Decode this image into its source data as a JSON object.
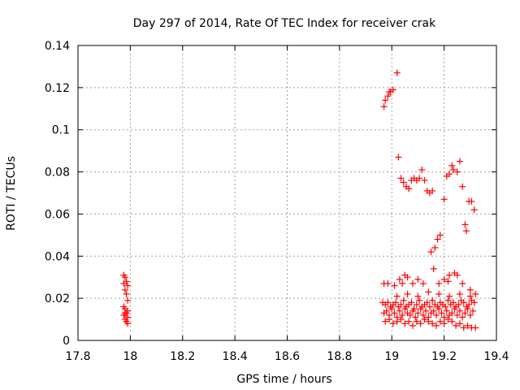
{
  "chart_data": {
    "type": "scatter",
    "title": "Day 297 of 2014, Rate Of TEC Index for receiver crak",
    "xlabel": "GPS time / hours",
    "ylabel": "ROTI / TECUs",
    "xlim": [
      17.8,
      19.4
    ],
    "ylim": [
      0,
      0.14
    ],
    "x_ticks": [
      "17.8",
      "18",
      "18.2",
      "18.4",
      "18.6",
      "18.8",
      "19",
      "19.2",
      "19.4"
    ],
    "y_ticks": [
      "0",
      "0.02",
      "0.04",
      "0.06",
      "0.08",
      "0.1",
      "0.12",
      "0.14"
    ],
    "grid": true,
    "marker": "+",
    "marker_color": "#ff0000",
    "series": [
      {
        "name": "ROTI",
        "points": [
          [
            17.975,
            0.031
          ],
          [
            17.98,
            0.03
          ],
          [
            17.985,
            0.028
          ],
          [
            17.975,
            0.027
          ],
          [
            17.99,
            0.026
          ],
          [
            17.98,
            0.024
          ],
          [
            17.985,
            0.022
          ],
          [
            17.99,
            0.019
          ],
          [
            17.975,
            0.016
          ],
          [
            17.98,
            0.015
          ],
          [
            17.99,
            0.014
          ],
          [
            17.985,
            0.013
          ],
          [
            17.975,
            0.012
          ],
          [
            17.99,
            0.011
          ],
          [
            17.98,
            0.01
          ],
          [
            17.985,
            0.009
          ],
          [
            17.99,
            0.008
          ],
          [
            17.98,
            0.013
          ],
          [
            18.97,
            0.111
          ],
          [
            18.975,
            0.114
          ],
          [
            18.985,
            0.116
          ],
          [
            18.99,
            0.118
          ],
          [
            18.995,
            0.118
          ],
          [
            19.005,
            0.119
          ],
          [
            19.02,
            0.127
          ],
          [
            19.025,
            0.087
          ],
          [
            19.035,
            0.077
          ],
          [
            19.045,
            0.075
          ],
          [
            19.055,
            0.073
          ],
          [
            19.065,
            0.072
          ],
          [
            19.075,
            0.076
          ],
          [
            19.085,
            0.077
          ],
          [
            19.095,
            0.076
          ],
          [
            19.105,
            0.077
          ],
          [
            19.115,
            0.081
          ],
          [
            19.125,
            0.076
          ],
          [
            19.135,
            0.071
          ],
          [
            19.145,
            0.07
          ],
          [
            19.155,
            0.071
          ],
          [
            19.15,
            0.042
          ],
          [
            19.165,
            0.044
          ],
          [
            19.175,
            0.048
          ],
          [
            19.185,
            0.05
          ],
          [
            19.2,
            0.067
          ],
          [
            19.21,
            0.078
          ],
          [
            19.22,
            0.079
          ],
          [
            19.23,
            0.083
          ],
          [
            19.235,
            0.081
          ],
          [
            19.25,
            0.08
          ],
          [
            19.26,
            0.085
          ],
          [
            19.27,
            0.073
          ],
          [
            19.28,
            0.055
          ],
          [
            19.285,
            0.052
          ],
          [
            19.295,
            0.066
          ],
          [
            19.305,
            0.066
          ],
          [
            19.315,
            0.062
          ],
          [
            19.16,
            0.034
          ],
          [
            19.22,
            0.031
          ],
          [
            19.24,
            0.032
          ],
          [
            19.25,
            0.031
          ],
          [
            19.05,
            0.031
          ],
          [
            19.06,
            0.03
          ],
          [
            19.03,
            0.029
          ],
          [
            19.1,
            0.029
          ],
          [
            19.2,
            0.029
          ],
          [
            19.215,
            0.028
          ],
          [
            18.97,
            0.027
          ],
          [
            18.985,
            0.027
          ],
          [
            19.01,
            0.026
          ],
          [
            19.04,
            0.027
          ],
          [
            19.08,
            0.027
          ],
          [
            19.12,
            0.027
          ],
          [
            19.18,
            0.027
          ],
          [
            19.27,
            0.027
          ],
          [
            19.3,
            0.024
          ],
          [
            18.965,
            0.018
          ],
          [
            18.975,
            0.017
          ],
          [
            18.985,
            0.018
          ],
          [
            18.995,
            0.016
          ],
          [
            19.005,
            0.017
          ],
          [
            19.015,
            0.018
          ],
          [
            19.025,
            0.016
          ],
          [
            19.035,
            0.017
          ],
          [
            19.045,
            0.019
          ],
          [
            19.055,
            0.016
          ],
          [
            19.065,
            0.017
          ],
          [
            19.075,
            0.018
          ],
          [
            19.085,
            0.015
          ],
          [
            19.095,
            0.017
          ],
          [
            19.105,
            0.019
          ],
          [
            19.115,
            0.016
          ],
          [
            19.125,
            0.017
          ],
          [
            19.135,
            0.018
          ],
          [
            19.145,
            0.016
          ],
          [
            19.155,
            0.019
          ],
          [
            19.165,
            0.017
          ],
          [
            19.175,
            0.016
          ],
          [
            19.185,
            0.018
          ],
          [
            19.195,
            0.017
          ],
          [
            19.205,
            0.016
          ],
          [
            19.215,
            0.019
          ],
          [
            19.225,
            0.017
          ],
          [
            19.235,
            0.018
          ],
          [
            19.245,
            0.016
          ],
          [
            19.255,
            0.017
          ],
          [
            19.265,
            0.019
          ],
          [
            19.275,
            0.018
          ],
          [
            19.285,
            0.016
          ],
          [
            19.295,
            0.017
          ],
          [
            19.305,
            0.019
          ],
          [
            19.315,
            0.018
          ],
          [
            18.97,
            0.013
          ],
          [
            18.98,
            0.014
          ],
          [
            18.99,
            0.012
          ],
          [
            19.0,
            0.015
          ],
          [
            19.01,
            0.013
          ],
          [
            19.02,
            0.011
          ],
          [
            19.03,
            0.014
          ],
          [
            19.04,
            0.012
          ],
          [
            19.05,
            0.015
          ],
          [
            19.06,
            0.013
          ],
          [
            19.07,
            0.012
          ],
          [
            19.08,
            0.014
          ],
          [
            19.09,
            0.011
          ],
          [
            19.1,
            0.013
          ],
          [
            19.11,
            0.015
          ],
          [
            19.12,
            0.012
          ],
          [
            19.13,
            0.014
          ],
          [
            19.14,
            0.011
          ],
          [
            19.15,
            0.013
          ],
          [
            19.16,
            0.014
          ],
          [
            19.17,
            0.012
          ],
          [
            19.18,
            0.015
          ],
          [
            19.19,
            0.013
          ],
          [
            19.2,
            0.011
          ],
          [
            19.21,
            0.014
          ],
          [
            19.22,
            0.012
          ],
          [
            19.23,
            0.013
          ],
          [
            19.24,
            0.015
          ],
          [
            19.25,
            0.012
          ],
          [
            19.26,
            0.014
          ],
          [
            19.27,
            0.011
          ],
          [
            19.28,
            0.013
          ],
          [
            19.29,
            0.015
          ],
          [
            19.3,
            0.012
          ],
          [
            19.31,
            0.014
          ],
          [
            18.975,
            0.009
          ],
          [
            18.99,
            0.01
          ],
          [
            19.005,
            0.008
          ],
          [
            19.02,
            0.009
          ],
          [
            19.035,
            0.01
          ],
          [
            19.05,
            0.008
          ],
          [
            19.065,
            0.009
          ],
          [
            19.08,
            0.007
          ],
          [
            19.095,
            0.009
          ],
          [
            19.11,
            0.008
          ],
          [
            19.125,
            0.01
          ],
          [
            19.14,
            0.009
          ],
          [
            19.155,
            0.008
          ],
          [
            19.17,
            0.007
          ],
          [
            19.185,
            0.009
          ],
          [
            19.2,
            0.008
          ],
          [
            19.215,
            0.01
          ],
          [
            19.23,
            0.009
          ],
          [
            19.245,
            0.007
          ],
          [
            19.26,
            0.008
          ],
          [
            19.275,
            0.006
          ],
          [
            19.29,
            0.007
          ],
          [
            19.305,
            0.006
          ],
          [
            19.32,
            0.006
          ],
          [
            19.02,
            0.021
          ],
          [
            19.06,
            0.022
          ],
          [
            19.1,
            0.021
          ],
          [
            19.14,
            0.023
          ],
          [
            19.18,
            0.022
          ],
          [
            19.22,
            0.021
          ],
          [
            19.26,
            0.022
          ],
          [
            19.3,
            0.021
          ],
          [
            19.32,
            0.022
          ]
        ]
      }
    ]
  }
}
